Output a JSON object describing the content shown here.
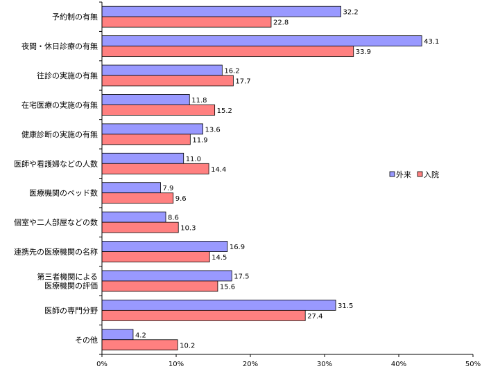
{
  "chart_data": {
    "type": "bar",
    "orientation": "horizontal",
    "categories": [
      "予約制の有無",
      "夜間・休日診療の有無",
      "往診の実施の有無",
      "在宅医療の実施の有無",
      "健康診断の実施の有無",
      "医師や看護婦などの人数",
      "医療機関のベッド数",
      "個室や二人部屋などの数",
      "連携先の医療機関の名称",
      "第三者機関による\n医療機関の評価",
      "医師の専門分野",
      "その他"
    ],
    "series": [
      {
        "name": "外来",
        "color": "#9999ff",
        "values": [
          32.2,
          43.1,
          16.2,
          11.8,
          13.6,
          11.0,
          7.9,
          8.6,
          16.9,
          17.5,
          31.5,
          4.2
        ],
        "labels": [
          "32.2",
          "43.1",
          "16.2",
          "11.8",
          "13.6",
          "11.0",
          "7.9",
          "8.6",
          "16.9",
          "17.5",
          "31.5",
          "4.2"
        ]
      },
      {
        "name": "入院",
        "color": "#ff8080",
        "values": [
          22.8,
          33.9,
          17.7,
          15.2,
          11.9,
          14.4,
          9.6,
          10.3,
          14.5,
          15.6,
          27.4,
          10.2
        ],
        "labels": [
          "22.8",
          "33.9",
          "17.7",
          "15.2",
          "11.9",
          "14.4",
          "9.6",
          "10.3",
          "14.5",
          "15.6",
          "27.4",
          "10.2"
        ]
      }
    ],
    "xlim": [
      0,
      50
    ],
    "xticks": [
      "0%",
      "10%",
      "20%",
      "30%",
      "40%",
      "50%"
    ],
    "grid": false,
    "legend_position": "right"
  }
}
